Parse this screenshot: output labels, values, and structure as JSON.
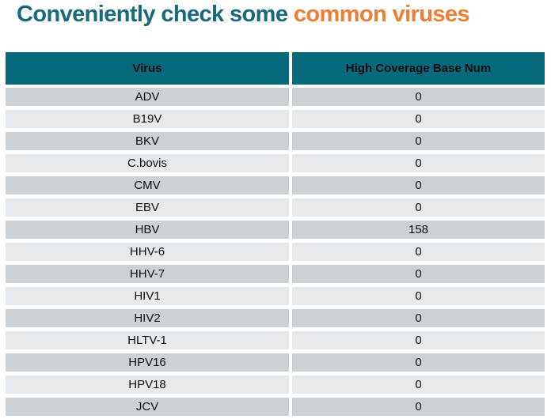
{
  "title": {
    "prefix": "Conveniently check some ",
    "highlight": "common viruses",
    "prefix_color": "#156a7b",
    "highlight_color": "#ef7e35"
  },
  "table": {
    "header": {
      "virus_label": "Virus",
      "value_label": "High Coverage Base Num",
      "bg_color": "#066a7c",
      "text_color": "#ffffff"
    },
    "row_colors": {
      "odd": "#cbd1d4",
      "even": "#e7eaec"
    },
    "rows": [
      {
        "virus": "ADV",
        "value": "0"
      },
      {
        "virus": "B19V",
        "value": "0"
      },
      {
        "virus": "BKV",
        "value": "0"
      },
      {
        "virus": "C.bovis",
        "value": "0"
      },
      {
        "virus": "CMV",
        "value": "0"
      },
      {
        "virus": "EBV",
        "value": "0"
      },
      {
        "virus": "HBV",
        "value": "158"
      },
      {
        "virus": "HHV-6",
        "value": "0"
      },
      {
        "virus": "HHV-7",
        "value": "0"
      },
      {
        "virus": "HIV1",
        "value": "0"
      },
      {
        "virus": "HIV2",
        "value": "0"
      },
      {
        "virus": "HLTV-1",
        "value": "0"
      },
      {
        "virus": "HPV16",
        "value": "0"
      },
      {
        "virus": "HPV18",
        "value": "0"
      },
      {
        "virus": "JCV",
        "value": "0"
      }
    ]
  }
}
